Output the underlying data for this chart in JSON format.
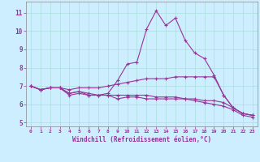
{
  "xlabel": "Windchill (Refroidissement éolien,°C)",
  "background_color": "#cceeff",
  "line_color": "#993399",
  "grid_color": "#aadddd",
  "xlim": [
    -0.5,
    23.5
  ],
  "ylim": [
    4.8,
    11.6
  ],
  "yticks": [
    5,
    6,
    7,
    8,
    9,
    10,
    11
  ],
  "xticks": [
    0,
    1,
    2,
    3,
    4,
    5,
    6,
    7,
    8,
    9,
    10,
    11,
    12,
    13,
    14,
    15,
    16,
    17,
    18,
    19,
    20,
    21,
    22,
    23
  ],
  "series": [
    [
      7.0,
      6.8,
      6.9,
      6.9,
      6.6,
      6.7,
      6.5,
      6.5,
      6.6,
      7.3,
      8.2,
      8.3,
      10.1,
      11.1,
      10.3,
      10.7,
      9.5,
      8.8,
      8.5,
      7.6,
      6.5,
      5.8,
      5.5,
      5.4
    ],
    [
      7.0,
      6.8,
      6.9,
      6.9,
      6.8,
      6.9,
      6.9,
      6.9,
      7.0,
      7.1,
      7.2,
      7.3,
      7.4,
      7.4,
      7.4,
      7.5,
      7.5,
      7.5,
      7.5,
      7.5,
      6.5,
      5.8,
      5.5,
      5.4
    ],
    [
      7.0,
      6.8,
      6.9,
      6.9,
      6.6,
      6.7,
      6.6,
      6.5,
      6.5,
      6.5,
      6.5,
      6.5,
      6.5,
      6.4,
      6.4,
      6.4,
      6.3,
      6.3,
      6.2,
      6.2,
      6.1,
      5.8,
      5.5,
      5.4
    ],
    [
      7.0,
      6.8,
      6.9,
      6.9,
      6.5,
      6.6,
      6.5,
      6.5,
      6.5,
      6.3,
      6.4,
      6.4,
      6.3,
      6.3,
      6.3,
      6.3,
      6.3,
      6.2,
      6.1,
      6.0,
      5.9,
      5.7,
      5.4,
      5.3
    ]
  ]
}
